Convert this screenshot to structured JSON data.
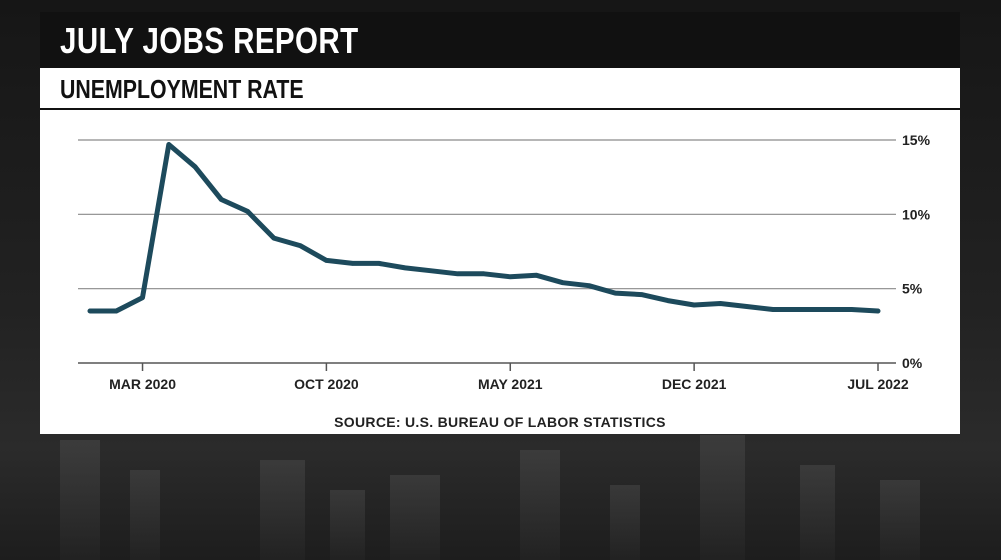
{
  "header": {
    "title": "JULY JOBS REPORT",
    "subtitle": "UNEMPLOYMENT RATE"
  },
  "footer": {
    "source": "SOURCE: U.S. BUREAU OF LABOR STATISTICS"
  },
  "colors": {
    "line": "#1d4a5c",
    "grid": "#8a8a8a",
    "title_bg": "#111111",
    "panel_bg": "#ffffff"
  },
  "chart_data": {
    "type": "line",
    "title": "UNEMPLOYMENT RATE",
    "xlabel": "",
    "ylabel": "",
    "ylim": [
      0,
      15
    ],
    "yticks": [
      0,
      5,
      10,
      15
    ],
    "ytick_labels": [
      "0%",
      "5%",
      "10%",
      "15%"
    ],
    "y_axis_position": "right",
    "grid": true,
    "x_tick_labels": [
      "MAR 2020",
      "OCT 2020",
      "MAY 2021",
      "DEC 2021",
      "JUL 2022"
    ],
    "x_tick_dates": [
      "2020-03",
      "2020-10",
      "2021-05",
      "2021-12",
      "2022-07"
    ],
    "series": [
      {
        "x": [
          "2020-01",
          "2020-02",
          "2020-03",
          "2020-04",
          "2020-05",
          "2020-06",
          "2020-07",
          "2020-08",
          "2020-09",
          "2020-10",
          "2020-11",
          "2020-12",
          "2021-01",
          "2021-02",
          "2021-03",
          "2021-04",
          "2021-05",
          "2021-06",
          "2021-07",
          "2021-08",
          "2021-09",
          "2021-10",
          "2021-11",
          "2021-12",
          "2022-01",
          "2022-02",
          "2022-03",
          "2022-04",
          "2022-05",
          "2022-06",
          "2022-07"
        ],
        "values": [
          3.5,
          3.5,
          4.4,
          14.7,
          13.2,
          11.0,
          10.2,
          8.4,
          7.9,
          6.9,
          6.7,
          6.7,
          6.4,
          6.2,
          6.0,
          6.0,
          5.8,
          5.9,
          5.4,
          5.2,
          4.7,
          4.6,
          4.2,
          3.9,
          4.0,
          3.8,
          3.6,
          3.6,
          3.6,
          3.6,
          3.5
        ]
      }
    ]
  }
}
